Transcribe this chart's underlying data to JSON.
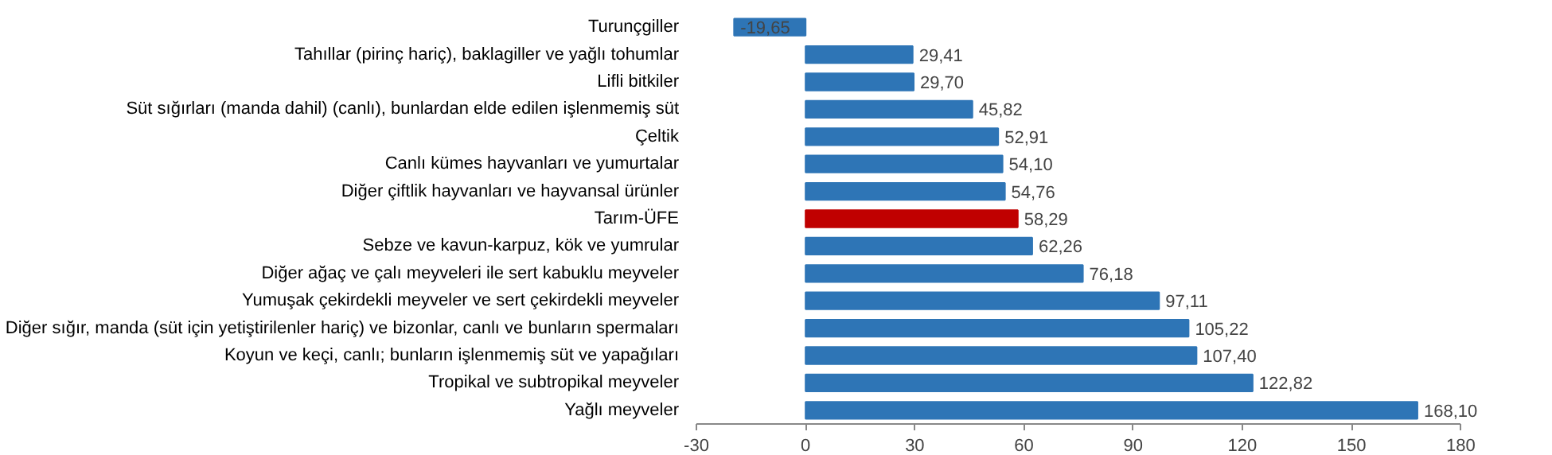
{
  "chart_data": {
    "type": "bar",
    "orientation": "horizontal",
    "categories": [
      "Turunçgiller",
      "Tahıllar (pirinç hariç), baklagiller ve yağlı tohumlar",
      "Lifli bitkiler",
      "Süt sığırları (manda dahil) (canlı), bunlardan elde edilen işlenmemiş süt",
      "Çeltik",
      "Canlı kümes hayvanları ve yumurtalar",
      "Diğer çiftlik hayvanları ve hayvansal ürünler",
      "Tarım-ÜFE",
      "Sebze ve kavun-karpuz, kök ve yumrular",
      "Diğer ağaç ve çalı meyveleri ile sert kabuklu meyveler",
      "Yumuşak çekirdekli meyveler ve sert çekirdekli meyveler",
      "Diğer sığır, manda (süt için yetiştirilenler hariç) ve bizonlar, canlı ve bunların spermaları",
      "Koyun ve keçi, canlı; bunların işlenmemiş süt ve yapağıları",
      "Tropikal ve subtropikal meyveler",
      "Yağlı meyveler"
    ],
    "values": [
      -19.65,
      29.41,
      29.7,
      45.82,
      52.91,
      54.1,
      54.76,
      58.29,
      62.26,
      76.18,
      97.11,
      105.22,
      107.4,
      122.82,
      168.1
    ],
    "value_labels": [
      "-19,65",
      "29,41",
      "29,70",
      "45,82",
      "52,91",
      "54,10",
      "54,76",
      "58,29",
      "62,26",
      "76,18",
      "97,11",
      "105,22",
      "107,40",
      "122,82",
      "168,10"
    ],
    "colors": [
      "#2e75b6",
      "#2e75b6",
      "#2e75b6",
      "#2e75b6",
      "#2e75b6",
      "#2e75b6",
      "#2e75b6",
      "#c00000",
      "#2e75b6",
      "#2e75b6",
      "#2e75b6",
      "#2e75b6",
      "#2e75b6",
      "#2e75b6",
      "#2e75b6"
    ],
    "xlim": [
      -30,
      180
    ],
    "xticks": [
      {
        "value": -30,
        "label": "-30"
      },
      0,
      30,
      60,
      90,
      120,
      150,
      180
    ],
    "grid": false
  }
}
